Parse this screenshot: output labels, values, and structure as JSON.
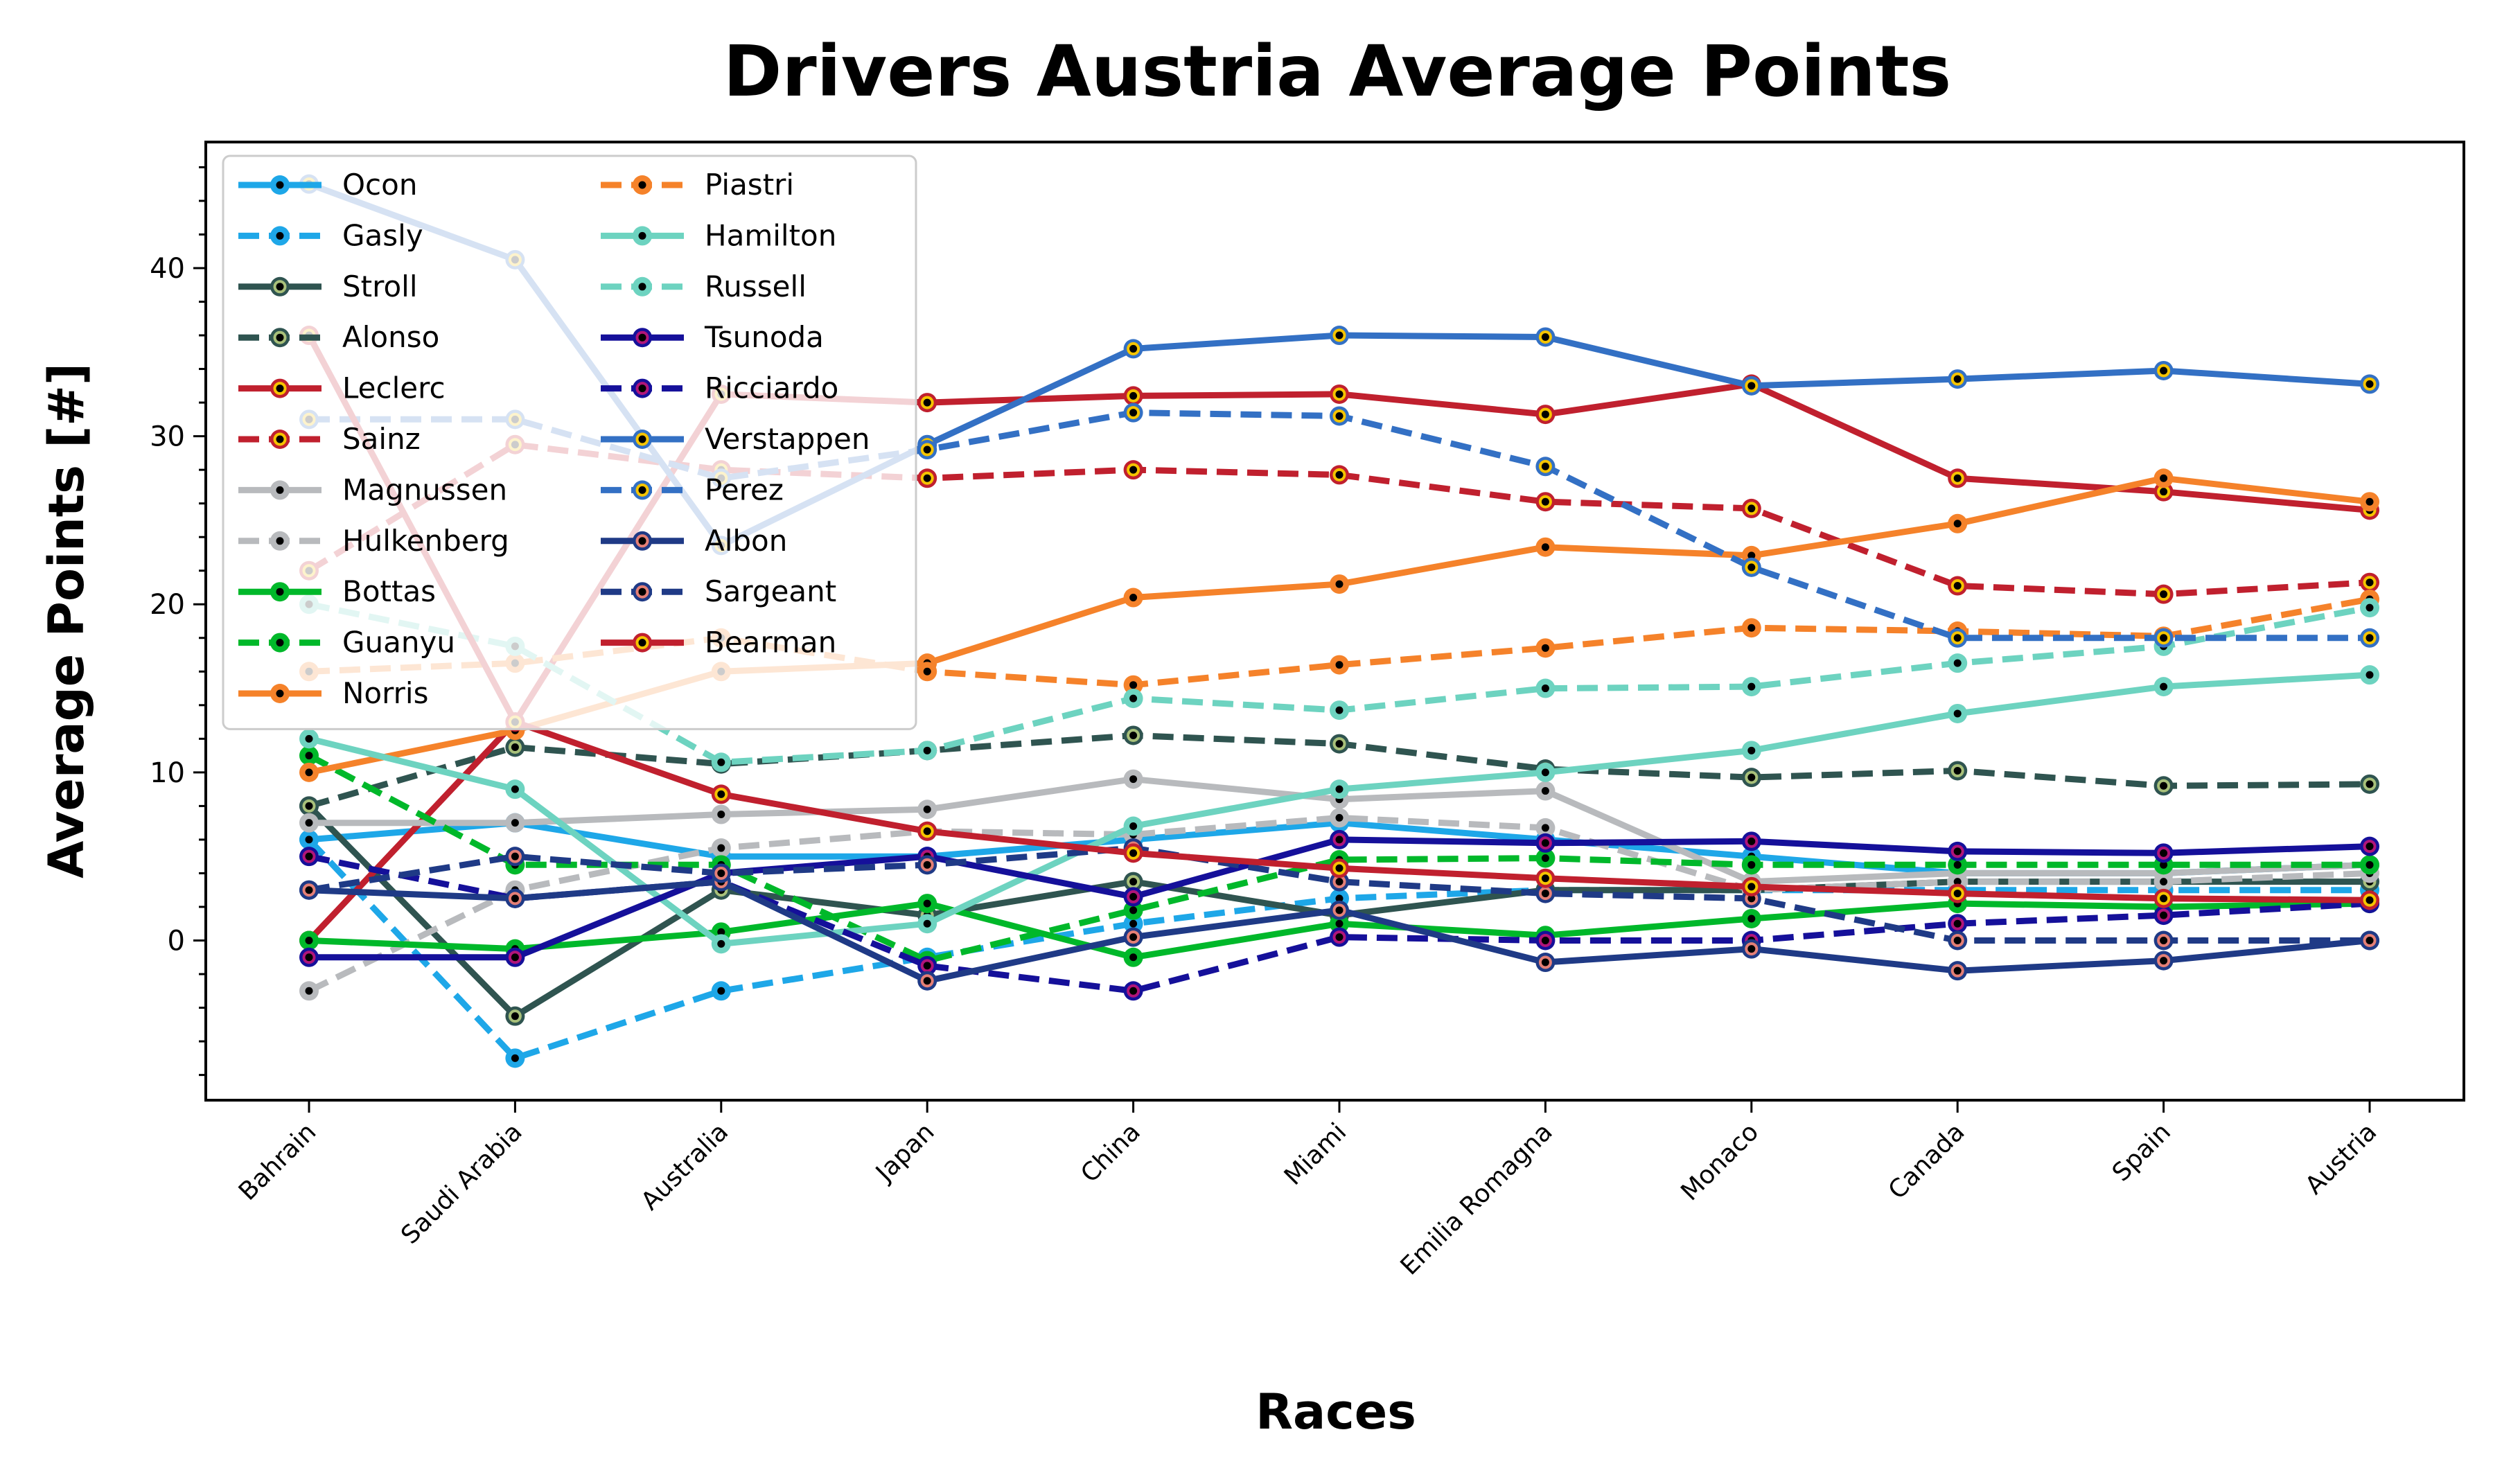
{
  "chart_data": {
    "type": "line",
    "title": "Drivers Austria Average Points",
    "xlabel": "Races",
    "ylabel": "Average Points [#]",
    "categories": [
      "Bahrain",
      "Saudi Arabia",
      "Australia",
      "Japan",
      "China",
      "Miami",
      "Emilia Romagna",
      "Monaco",
      "Canada",
      "Spain",
      "Austria"
    ],
    "ylim": [
      -9.5,
      47.5
    ],
    "yticks": [
      0,
      10,
      20,
      30,
      40
    ],
    "grid": false,
    "legend_position": "upper-left",
    "legend_columns": 2,
    "series": [
      {
        "name": "Ocon",
        "color": "#1ea7e8",
        "dash": "solid",
        "face": "#1ea7e8",
        "values": [
          6,
          7,
          5,
          5,
          6,
          7,
          6,
          5,
          4,
          4,
          4.5
        ]
      },
      {
        "name": "Gasly",
        "color": "#1ea7e8",
        "dash": "dashed",
        "face": "#1ea7e8",
        "values": [
          6,
          -7,
          -3,
          -1,
          1,
          2.5,
          3,
          3,
          3,
          3,
          3
        ]
      },
      {
        "name": "Stroll",
        "color": "#2f5450",
        "dash": "solid",
        "face": "#a8c07a",
        "values": [
          8,
          -4.5,
          3,
          1.5,
          3.5,
          1.5,
          3,
          3,
          3.5,
          3.5,
          3.5
        ]
      },
      {
        "name": "Alonso",
        "color": "#2f5450",
        "dash": "dashed",
        "face": "#a8c07a",
        "values": [
          8,
          11.5,
          10.5,
          11.3,
          12.2,
          11.7,
          10.2,
          9.7,
          10.1,
          9.2,
          9.3
        ]
      },
      {
        "name": "Leclerc",
        "color": "#c0202e",
        "dash": "solid",
        "face": "#f5c400",
        "values": [
          0,
          13,
          32.5,
          32,
          32.4,
          32.5,
          31.3,
          33.1,
          27.5,
          26.7,
          25.6
        ]
      },
      {
        "name": "Sainz",
        "color": "#c0202e",
        "dash": "dashed",
        "face": "#f5c400",
        "values": [
          22,
          29.5,
          28,
          27.5,
          28,
          27.7,
          26.1,
          25.7,
          21.1,
          20.6,
          21.3
        ]
      },
      {
        "name": "Magnussen",
        "color": "#b8babd",
        "dash": "solid",
        "face": "#b8babd",
        "values": [
          7,
          7,
          7.5,
          7.8,
          9.6,
          8.4,
          8.9,
          3.5,
          4,
          4,
          4.5
        ]
      },
      {
        "name": "Hulkenberg",
        "color": "#b8babd",
        "dash": "dashed",
        "face": "#b8babd",
        "values": [
          -3,
          3,
          5.5,
          6.5,
          6.3,
          7.3,
          6.7,
          3,
          3.5,
          3.5,
          4
        ]
      },
      {
        "name": "Bottas",
        "color": "#00b82a",
        "dash": "solid",
        "face": "#00b82a",
        "values": [
          0,
          -0.5,
          0.5,
          2.2,
          -1,
          1,
          0.3,
          1.3,
          2.2,
          2,
          2.2
        ]
      },
      {
        "name": "Guanyu",
        "color": "#00b82a",
        "dash": "dashed",
        "face": "#00b82a",
        "values": [
          11,
          4.5,
          4.5,
          -1.2,
          1.8,
          4.8,
          4.9,
          4.5,
          4.5,
          4.5,
          4.5
        ]
      },
      {
        "name": "Norris",
        "color": "#f5822a",
        "dash": "solid",
        "face": "#f5822a",
        "values": [
          10,
          12.5,
          16,
          16.5,
          20.4,
          21.2,
          23.4,
          22.9,
          24.8,
          27.5,
          26.1
        ]
      },
      {
        "name": "Piastri",
        "color": "#f5822a",
        "dash": "dashed",
        "face": "#f5822a",
        "values": [
          16,
          16.5,
          18,
          16,
          15.2,
          16.4,
          17.4,
          18.6,
          18.4,
          18.1,
          20.3
        ]
      },
      {
        "name": "Hamilton",
        "color": "#6dd3c0",
        "dash": "solid",
        "face": "#6dd3c0",
        "values": [
          12,
          9,
          -0.2,
          1,
          6.8,
          9,
          10,
          11.3,
          13.5,
          15.1,
          15.8
        ]
      },
      {
        "name": "Russell",
        "color": "#6dd3c0",
        "dash": "dashed",
        "face": "#6dd3c0",
        "values": [
          20,
          17.5,
          10.6,
          11.3,
          14.4,
          13.7,
          15,
          15.1,
          16.5,
          17.5,
          19.8
        ]
      },
      {
        "name": "Tsunoda",
        "color": "#15109a",
        "dash": "solid",
        "face": "#b0157a",
        "values": [
          -1,
          -1,
          4,
          5,
          2.6,
          6,
          5.8,
          5.9,
          5.3,
          5.2,
          5.6
        ]
      },
      {
        "name": "Ricciardo",
        "color": "#15109a",
        "dash": "dashed",
        "face": "#b0157a",
        "values": [
          5,
          2.5,
          3.5,
          -1.5,
          -3,
          0.2,
          0,
          0,
          1,
          1.5,
          2.2
        ]
      },
      {
        "name": "Verstappen",
        "color": "#3370c4",
        "dash": "solid",
        "face": "#f5c400",
        "values": [
          45,
          40.5,
          23.5,
          29.5,
          35.2,
          36,
          35.9,
          33,
          33.4,
          33.9,
          33.1
        ]
      },
      {
        "name": "Perez",
        "color": "#3370c4",
        "dash": "dashed",
        "face": "#f5c400",
        "values": [
          31,
          31,
          27.5,
          29.2,
          31.4,
          31.2,
          28.2,
          22.2,
          18,
          18,
          18
        ]
      },
      {
        "name": "Albon",
        "color": "#1f3a86",
        "dash": "solid",
        "face": "#e47f76",
        "values": [
          3,
          2.5,
          3.5,
          -2.4,
          0.2,
          1.8,
          -1.3,
          -0.5,
          -1.8,
          -1.2,
          0
        ]
      },
      {
        "name": "Sargeant",
        "color": "#1f3a86",
        "dash": "dashed",
        "face": "#e47f76",
        "values": [
          3,
          5,
          4,
          4.5,
          5.5,
          3.5,
          2.8,
          2.5,
          0,
          0,
          0
        ]
      },
      {
        "name": "Bearman",
        "color": "#c0202e",
        "dash": "solid",
        "face": "#f5c400",
        "values": [
          36,
          13,
          8.7,
          6.5,
          5.2,
          4.3,
          3.7,
          3.2,
          2.8,
          2.5,
          2.4
        ]
      }
    ]
  }
}
